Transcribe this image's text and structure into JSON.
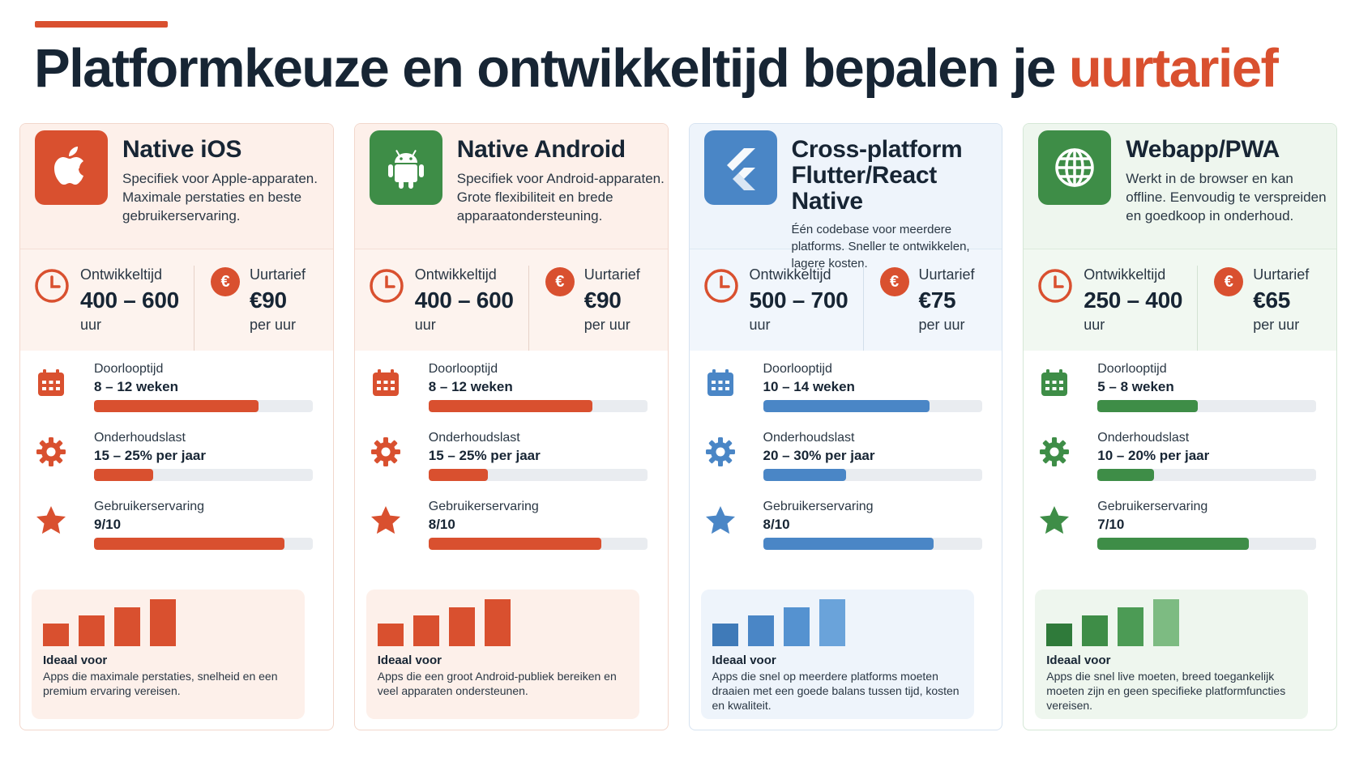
{
  "title": {
    "main": "Platformkeuze en ontwikkeltijd bepalen je",
    "highlight": "uurtarief"
  },
  "colors": {
    "red": "#d9502f",
    "green": "#3e8d47",
    "blue": "#4a86c6"
  },
  "cards": [
    {
      "name": "Native iOS",
      "description": "Specifiek voor Apple-apparaten. Maximale perstaties en beste gebruikerservaring.",
      "icon": "apple-icon",
      "accent": "#d9502f",
      "dev_time_label": "Ontwikkeltijd",
      "dev_time_value": "400 – 600",
      "dev_time_unit": "uur",
      "rate_label": "Uurtarief",
      "rate_value": "€90",
      "rate_unit": "per uur",
      "stats": [
        {
          "label": "Doorlooptijd",
          "value": "8 – 12 weken",
          "fill": 0.75,
          "icon": "calendar-icon"
        },
        {
          "label": "Onderhoudslast",
          "value": "15 – 25% per jaar",
          "fill": 0.27,
          "icon": "gear-icon"
        },
        {
          "label": "Gebruikerservaring",
          "value": "9/10",
          "fill": 0.87,
          "icon": "star-icon"
        }
      ],
      "ideal_title": "Ideaal voor",
      "ideal_text": "Apps die maximale perstaties, snelheid en een premium ervaring vereisen."
    },
    {
      "name": "Native Android",
      "description": "Specifiek voor Android-apparaten. Grote flexibiliteit en brede apparaatondersteuning.",
      "icon": "android-icon",
      "accent": "#d9502f",
      "dev_time_label": "Ontwikkeltijd",
      "dev_time_value": "400 – 600",
      "dev_time_unit": "uur",
      "rate_label": "Uurtarief",
      "rate_value": "€90",
      "rate_unit": "per uur",
      "stats": [
        {
          "label": "Doorlooptijd",
          "value": "8 – 12 weken",
          "fill": 0.75,
          "icon": "calendar-icon"
        },
        {
          "label": "Onderhoudslast",
          "value": "15 – 25% per jaar",
          "fill": 0.27,
          "icon": "gear-icon"
        },
        {
          "label": "Gebruikerservaring",
          "value": "8/10",
          "fill": 0.79,
          "icon": "star-icon"
        }
      ],
      "ideal_title": "Ideaal voor",
      "ideal_text": "Apps die een groot Android-publiek bereiken en veel apparaten ondersteunen."
    },
    {
      "name": "Cross-platform Flutter/React Native",
      "description": "Één codebase voor meerdere platforms. Sneller te ontwikkelen, lagere kosten.",
      "icon": "flutter-icon",
      "accent": "#4a86c6",
      "dev_time_label": "Ontwikkeltijd",
      "dev_time_value": "500 – 700",
      "dev_time_unit": "uur",
      "rate_label": "Uurtarief",
      "rate_value": "€75",
      "rate_unit": "per uur",
      "stats": [
        {
          "label": "Doorlooptijd",
          "value": "10 – 14 weken",
          "fill": 0.76,
          "icon": "calendar-icon"
        },
        {
          "label": "Onderhoudslast",
          "value": "20 – 30% per jaar",
          "fill": 0.38,
          "icon": "gear-icon"
        },
        {
          "label": "Gebruikerservaring",
          "value": "8/10",
          "fill": 0.78,
          "icon": "star-icon"
        }
      ],
      "ideal_title": "Ideaal voor",
      "ideal_text": "Apps die snel op meerdere platforms moeten draaien met een goede balans tussen tijd, kosten en kwaliteit."
    },
    {
      "name": "Webapp/PWA",
      "description": "Werkt in de browser en kan offline. Eenvoudig te verspreiden en goedkoop in onderhoud.",
      "icon": "globe-icon",
      "accent": "#3e8d47",
      "dev_time_label": "Ontwikkeltijd",
      "dev_time_value": "250 – 400",
      "dev_time_unit": "uur",
      "rate_label": "Uurtarief",
      "rate_value": "€65",
      "rate_unit": "per uur",
      "stats": [
        {
          "label": "Doorlooptijd",
          "value": "5 – 8 weken",
          "fill": 0.46,
          "icon": "calendar-icon"
        },
        {
          "label": "Onderhoudslast",
          "value": "10 – 20% per jaar",
          "fill": 0.26,
          "icon": "gear-icon"
        },
        {
          "label": "Gebruikerservaring",
          "value": "7/10",
          "fill": 0.69,
          "icon": "star-icon"
        }
      ],
      "ideal_title": "Ideaal voor",
      "ideal_text": "Apps die snel live moeten, breed toegankelijk moeten zijn en geen specifieke platformfuncties vereisen."
    }
  ]
}
